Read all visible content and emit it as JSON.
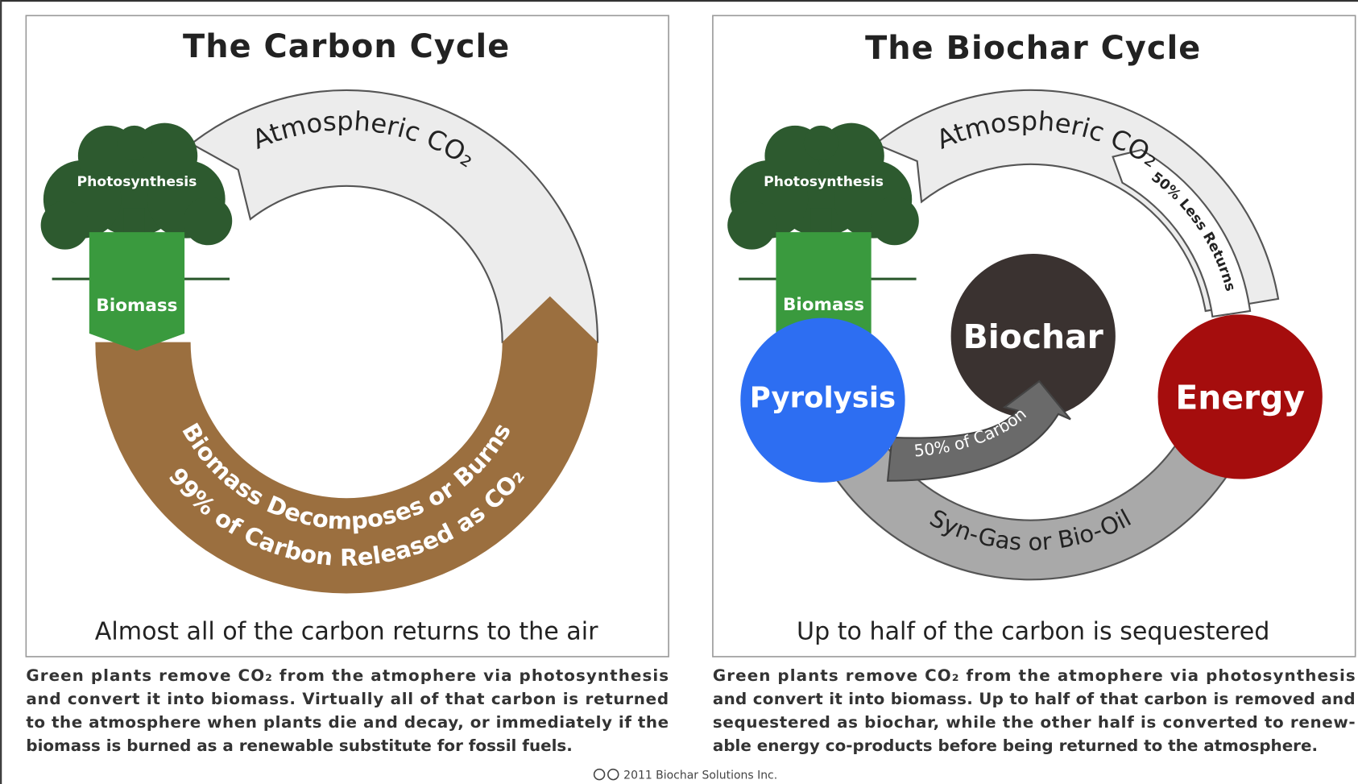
{
  "left": {
    "title": "The Carbon Cycle",
    "atmosphere": "Atmospheric CO₂",
    "photosynthesis": "Photosynthesis",
    "biomass": "Biomass",
    "arc_line_1": "Biomass Decomposes or Burns",
    "arc_line_2": "99% of Carbon Released as CO₂",
    "caption": "Almost all of the carbon returns to the air",
    "description": [
      "Green plants remove CO₂ from the atmophere via photosynthesis",
      "and convert it into biomass. Virtually all of that carbon is returned",
      "to the atmosphere when plants die and decay, or immediately if the",
      "biomass is burned as a renewable substitute for fossil fuels."
    ]
  },
  "right": {
    "title": "The Biochar Cycle",
    "atmosphere": "Atmospheric CO₂",
    "less_returns": "50% Less Returns",
    "photosynthesis": "Photosynthesis",
    "biomass": "Biomass",
    "pyrolysis": "Pyrolysis",
    "biochar": "Biochar",
    "energy": "Energy",
    "carbon": "50% of Carbon",
    "syngas": "Syn-Gas or Bio-Oil",
    "caption": "Up to half of the carbon is sequestered",
    "description": [
      "Green plants remove CO₂ from the atmophere via photosynthesis",
      "and convert it into biomass. Up to half of that carbon is removed and",
      "sequestered as biochar, while the other half is converted to renew-",
      "able energy co-products before being returned to the atmosphere."
    ]
  },
  "footer": "2011 Biochar Solutions Inc."
}
